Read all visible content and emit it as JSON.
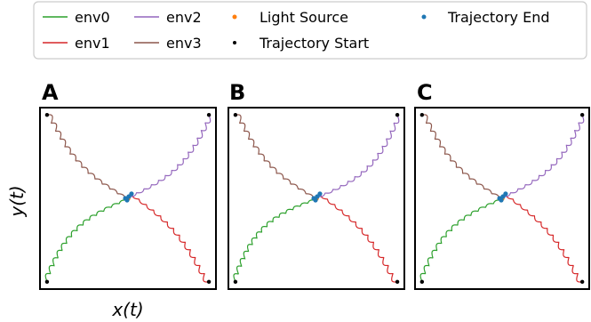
{
  "chart_data": {
    "type": "line",
    "legend": {
      "placement": "top",
      "entries": [
        {
          "label": "env0",
          "kind": "line",
          "color": "#2ca02c"
        },
        {
          "label": "env1",
          "kind": "line",
          "color": "#d62728"
        },
        {
          "label": "env2",
          "kind": "line",
          "color": "#9467bd"
        },
        {
          "label": "env3",
          "kind": "line",
          "color": "#8c564b"
        },
        {
          "label": "Light Source",
          "kind": "point",
          "color": "#ff7f0e"
        },
        {
          "label": "Trajectory Start",
          "kind": "point",
          "color": "#000000"
        },
        {
          "label": "Trajectory End",
          "kind": "point",
          "color": "#1f77b4"
        }
      ]
    },
    "xlabel": "x(t)",
    "ylabel": "y(t)",
    "xlim": [
      -1,
      1
    ],
    "ylim": [
      -1,
      1
    ],
    "grid": false,
    "panels": [
      {
        "label": "A",
        "light_source": [
          0.0,
          0.0
        ],
        "series": [
          {
            "color": "#2ca02c",
            "start": [
              -0.92,
              -0.92
            ],
            "end": [
              -0.01,
              -0.02
            ],
            "bend": 0.16,
            "scallops": 14
          },
          {
            "color": "#d62728",
            "start": [
              0.92,
              -0.92
            ],
            "end": [
              0.04,
              0.05
            ],
            "bend": -0.1,
            "scallops": 13
          },
          {
            "color": "#9467bd",
            "start": [
              0.92,
              0.92
            ],
            "end": [
              0.01,
              0.02
            ],
            "bend": 0.14,
            "scallops": 14
          },
          {
            "color": "#8c564b",
            "start": [
              -0.92,
              0.92
            ],
            "end": [
              -0.03,
              0.0
            ],
            "bend": -0.12,
            "scallops": 13
          }
        ]
      },
      {
        "label": "B",
        "light_source": [
          0.0,
          0.0
        ],
        "series": [
          {
            "color": "#2ca02c",
            "start": [
              -0.92,
              -0.92
            ],
            "end": [
              -0.01,
              -0.02
            ],
            "bend": 0.18,
            "scallops": 15
          },
          {
            "color": "#d62728",
            "start": [
              0.92,
              -0.92
            ],
            "end": [
              0.04,
              0.05
            ],
            "bend": -0.1,
            "scallops": 13
          },
          {
            "color": "#9467bd",
            "start": [
              0.92,
              0.92
            ],
            "end": [
              0.01,
              0.02
            ],
            "bend": 0.16,
            "scallops": 14
          },
          {
            "color": "#8c564b",
            "start": [
              -0.92,
              0.92
            ],
            "end": [
              -0.03,
              0.0
            ],
            "bend": -0.12,
            "scallops": 13
          }
        ]
      },
      {
        "label": "C",
        "light_source": [
          0.0,
          0.0
        ],
        "series": [
          {
            "color": "#2ca02c",
            "start": [
              -0.92,
              -0.92
            ],
            "end": [
              -0.01,
              -0.02
            ],
            "bend": 0.16,
            "scallops": 14
          },
          {
            "color": "#d62728",
            "start": [
              0.92,
              -0.92
            ],
            "end": [
              0.04,
              0.05
            ],
            "bend": -0.1,
            "scallops": 13
          },
          {
            "color": "#9467bd",
            "start": [
              0.92,
              0.92
            ],
            "end": [
              0.01,
              0.02
            ],
            "bend": 0.14,
            "scallops": 14
          },
          {
            "color": "#8c564b",
            "start": [
              -0.92,
              0.92
            ],
            "end": [
              -0.03,
              0.0
            ],
            "bend": -0.12,
            "scallops": 13
          }
        ]
      }
    ]
  }
}
